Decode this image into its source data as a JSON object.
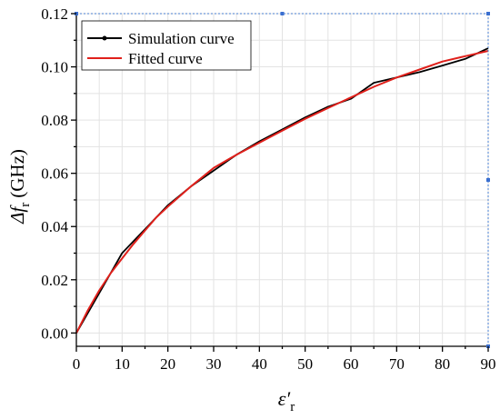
{
  "chart_data": {
    "type": "line",
    "title": "",
    "xlabel": "ε′",
    "xlabel_sub": "r",
    "ylabel_prefix": "Δf",
    "ylabel_sub": "r",
    "ylabel_unit": "(GHz)",
    "xlim": [
      0,
      90
    ],
    "ylim": [
      -0.005,
      0.12
    ],
    "x_ticks": [
      0,
      10,
      20,
      30,
      40,
      50,
      60,
      70,
      80,
      90
    ],
    "y_ticks": [
      0.0,
      0.02,
      0.04,
      0.06,
      0.08,
      0.1,
      0.12
    ],
    "y_tick_labels": [
      "0.00",
      "0.02",
      "0.04",
      "0.06",
      "0.08",
      "0.10",
      "0.12"
    ],
    "grid": true,
    "legend_position": "top-left",
    "series": [
      {
        "name": "Simulation curve",
        "color": "#000000",
        "x": [
          0,
          5,
          10,
          15,
          20,
          25,
          30,
          35,
          40,
          45,
          50,
          55,
          60,
          65,
          70,
          75,
          80,
          85,
          90
        ],
        "y": [
          0.0,
          0.015,
          0.03,
          0.039,
          0.048,
          0.055,
          0.061,
          0.067,
          0.072,
          0.0765,
          0.081,
          0.085,
          0.088,
          0.094,
          0.096,
          0.098,
          0.1005,
          0.103,
          0.107
        ]
      },
      {
        "name": "Fitted curve",
        "color": "#e0201b",
        "x": [
          0,
          2.5,
          5,
          7.5,
          10,
          12.5,
          15,
          17.5,
          20,
          25,
          30,
          35,
          40,
          45,
          50,
          55,
          60,
          65,
          70,
          75,
          80,
          85,
          90
        ],
        "y": [
          0.0,
          0.0085,
          0.016,
          0.0225,
          0.028,
          0.0335,
          0.0385,
          0.0435,
          0.0475,
          0.055,
          0.062,
          0.067,
          0.0715,
          0.076,
          0.0805,
          0.0845,
          0.0885,
          0.0925,
          0.096,
          0.099,
          0.102,
          0.104,
          0.106
        ]
      }
    ]
  }
}
